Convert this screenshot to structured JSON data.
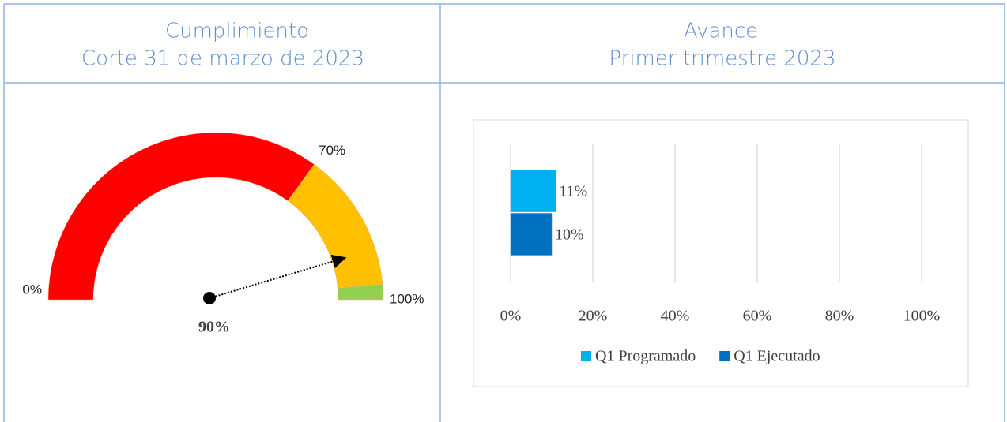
{
  "chart_data": [
    {
      "type": "gauge",
      "title": "Cumplimiento",
      "subtitle": "Corte 31 de marzo de 2023",
      "range": [
        0,
        100
      ],
      "value": 90,
      "value_label": "90%",
      "bands": [
        {
          "from": 0,
          "to": 70,
          "color": "#ff0000"
        },
        {
          "from": 70,
          "to": 97,
          "color": "#ffc000"
        },
        {
          "from": 97,
          "to": 100,
          "color": "#92d050"
        }
      ],
      "ticks": [
        {
          "value": 0,
          "label": "0%"
        },
        {
          "value": 70,
          "label": "70%"
        },
        {
          "value": 100,
          "label": "100%"
        }
      ]
    },
    {
      "type": "bar",
      "orientation": "horizontal",
      "title": "Avance",
      "subtitle": "Primer trimestre 2023",
      "categories": [
        null
      ],
      "series": [
        {
          "name": "Q1 Programado",
          "color": "#00b0f0",
          "values": [
            11
          ],
          "value_labels": [
            "11%"
          ]
        },
        {
          "name": "Q1 Ejecutado",
          "color": "#0070c0",
          "values": [
            10
          ],
          "value_labels": [
            "10%"
          ]
        }
      ],
      "xlim": [
        0,
        100
      ],
      "xticks": [
        {
          "value": 0,
          "label": "0%"
        },
        {
          "value": 20,
          "label": "20%"
        },
        {
          "value": 40,
          "label": "40%"
        },
        {
          "value": 60,
          "label": "60%"
        },
        {
          "value": 80,
          "label": "80%"
        },
        {
          "value": 100,
          "label": "100%"
        }
      ],
      "grid": true,
      "legend": "bottom"
    }
  ]
}
